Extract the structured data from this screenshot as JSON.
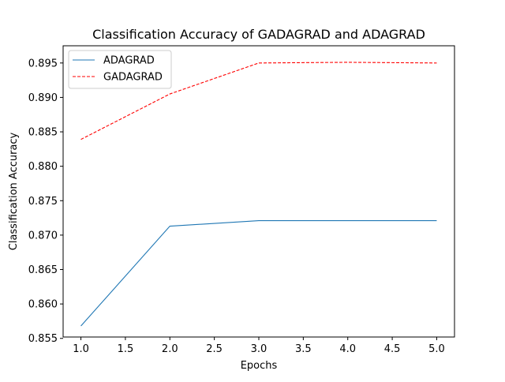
{
  "chart_data": {
    "type": "line",
    "title": "Classification Accuracy of GADAGRAD and ADAGRAD",
    "xlabel": "Epochs",
    "ylabel": "Classification Accuracy",
    "x": [
      1.0,
      2.0,
      3.0,
      4.0,
      5.0
    ],
    "xlim": [
      0.8,
      5.2
    ],
    "ylim": [
      0.8552,
      0.8975
    ],
    "xticks": [
      1.0,
      1.5,
      2.0,
      2.5,
      3.0,
      3.5,
      4.0,
      4.5,
      5.0
    ],
    "xtick_labels": [
      "1.0",
      "1.5",
      "2.0",
      "2.5",
      "3.0",
      "3.5",
      "4.0",
      "4.5",
      "5.0"
    ],
    "yticks": [
      0.855,
      0.86,
      0.865,
      0.87,
      0.875,
      0.88,
      0.885,
      0.89,
      0.895
    ],
    "ytick_labels": [
      "0.855",
      "0.860",
      "0.865",
      "0.870",
      "0.875",
      "0.880",
      "0.885",
      "0.890",
      "0.895"
    ],
    "grid": false,
    "legend_position": "top-left",
    "series": [
      {
        "name": "ADAGRAD",
        "values": [
          0.8568,
          0.8713,
          0.8721,
          0.8721,
          0.8721
        ],
        "color": "#1f77b4",
        "style": "solid"
      },
      {
        "name": "GADAGRAD",
        "values": [
          0.8839,
          0.8905,
          0.895,
          0.8951,
          0.895
        ],
        "color": "#ff0000",
        "style": "dashed"
      }
    ]
  }
}
